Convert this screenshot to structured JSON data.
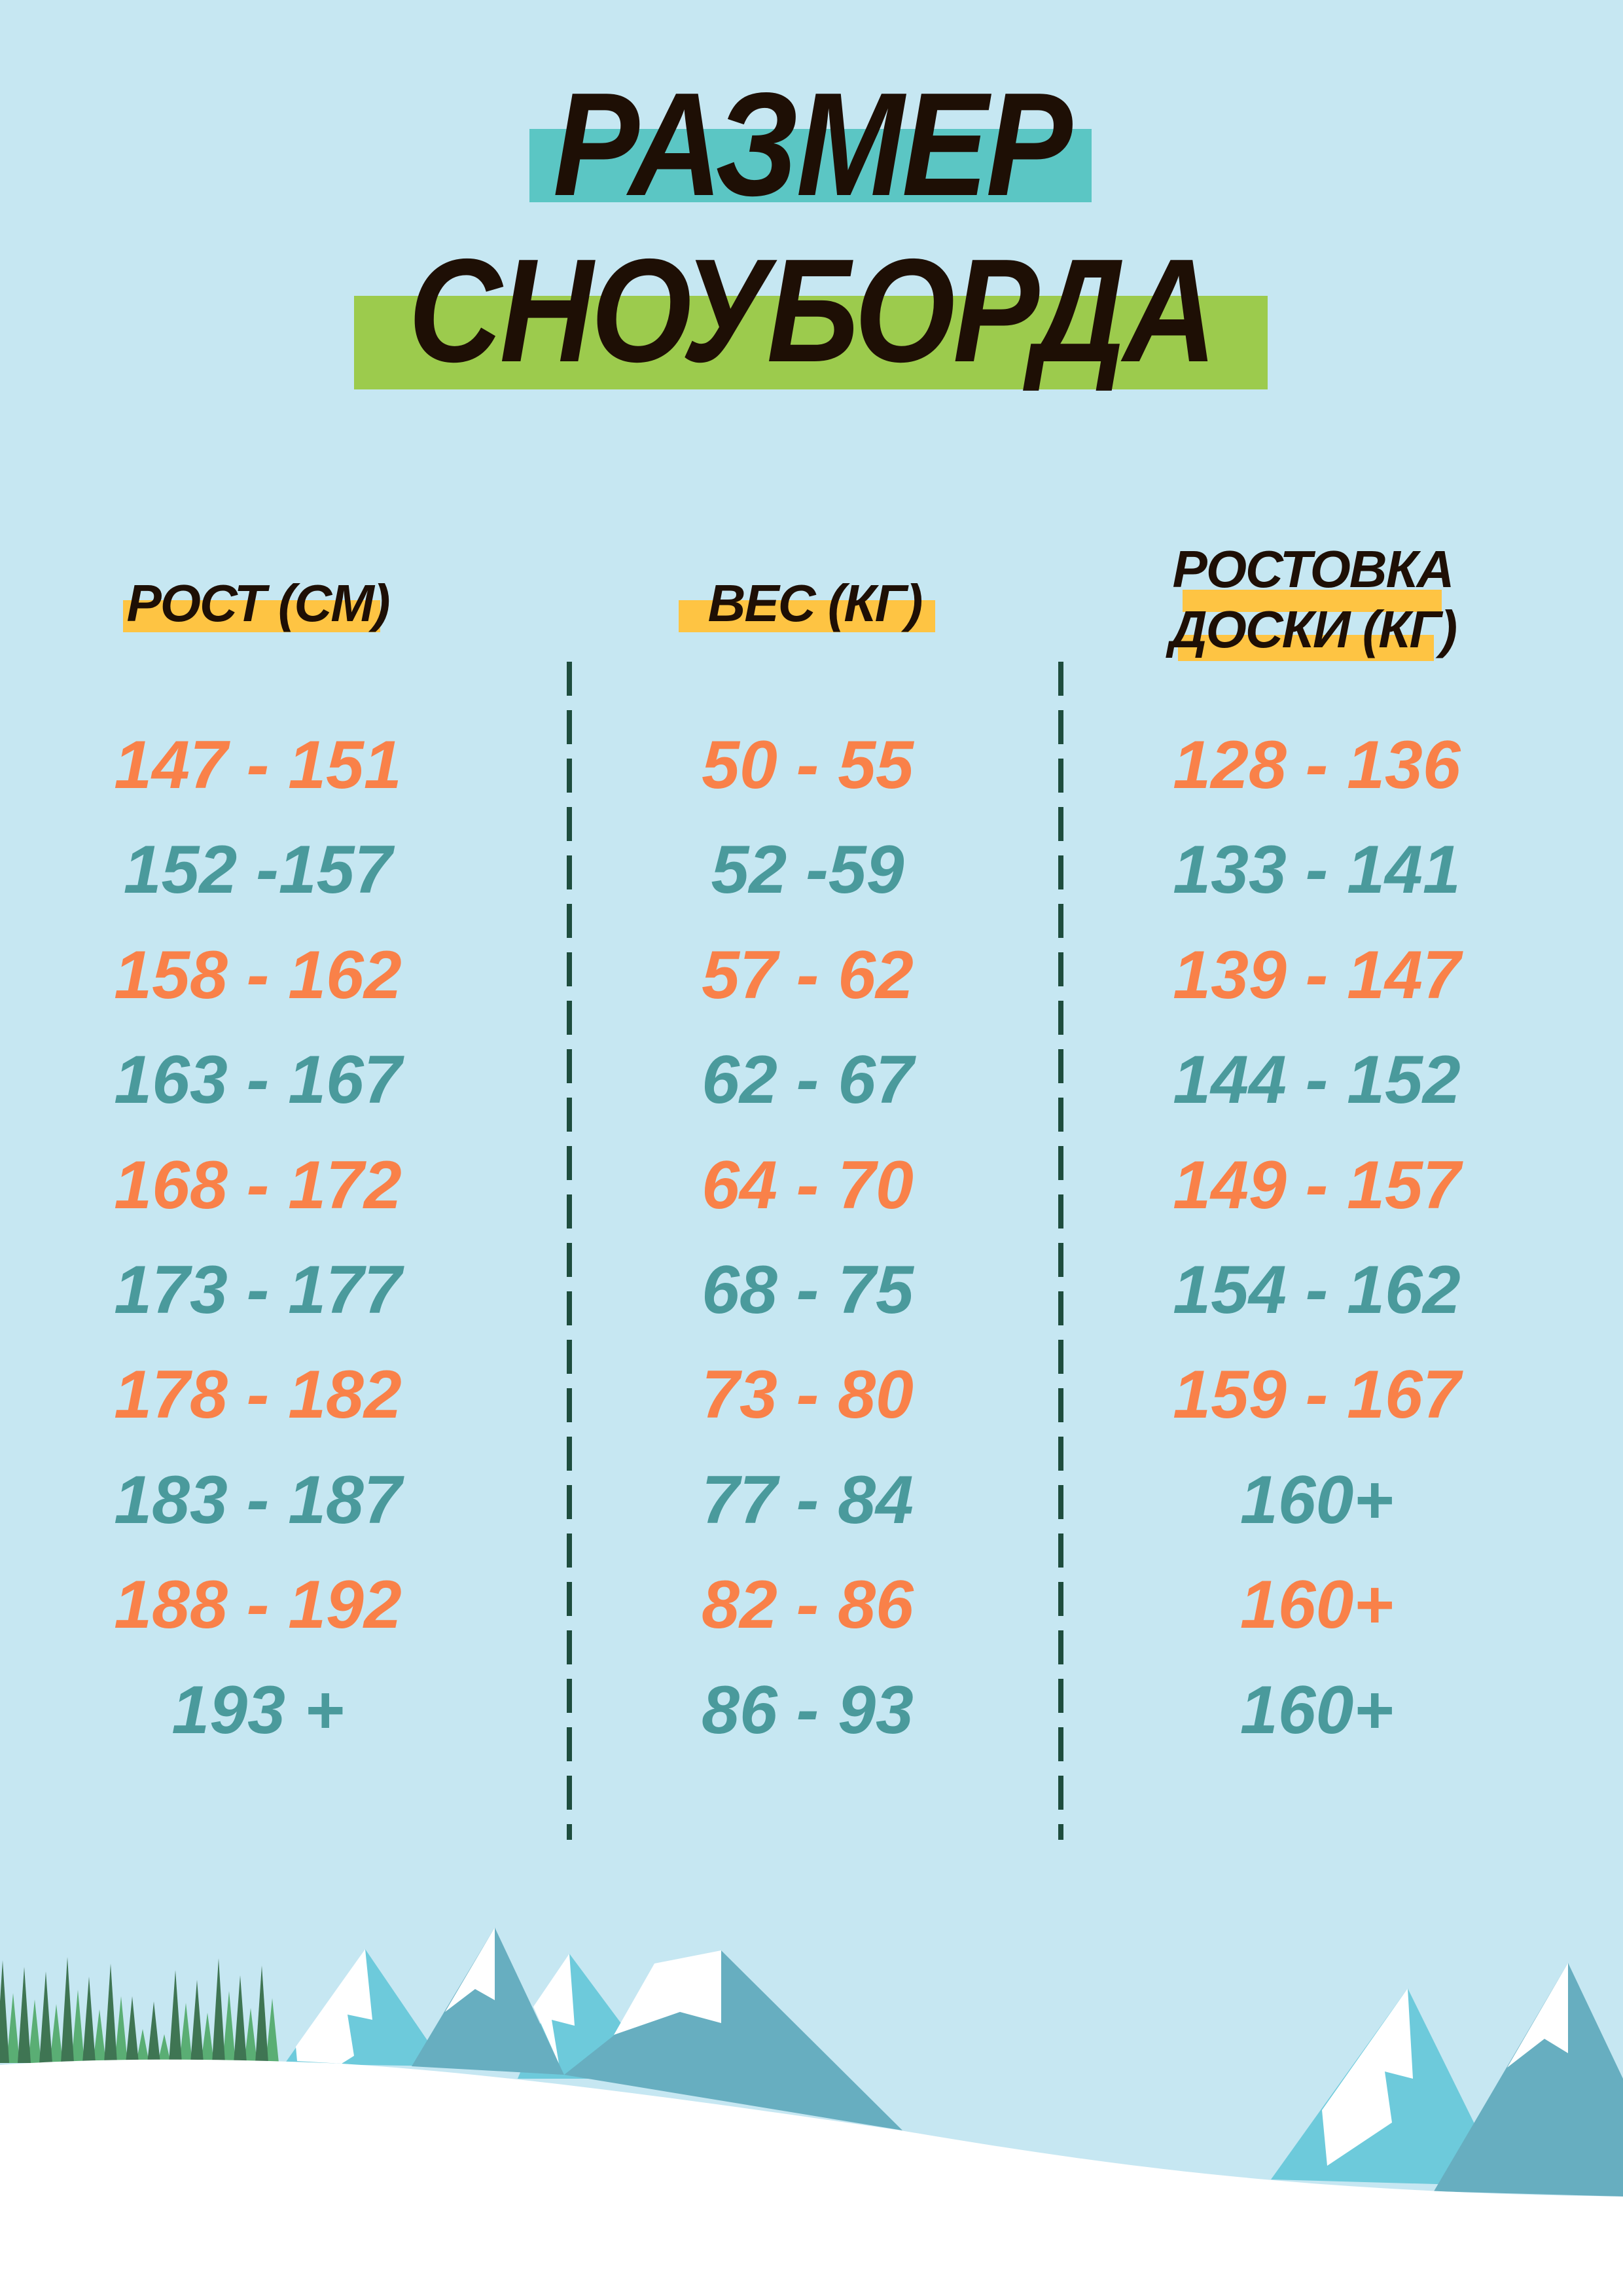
{
  "title": {
    "line1": "РАЗМЕР",
    "line2": "СНОУБОРДА"
  },
  "colors": {
    "background": "#c6e7f2",
    "title_bar_1": "#5bc6c4",
    "title_bar_2": "#9ccb4d",
    "header_highlight": "#fec443",
    "odd_row": "#f98149",
    "even_row": "#4a9a9c",
    "divider": "#1e4d3e"
  },
  "columns": [
    {
      "header": [
        "РОСТ (СМ)"
      ],
      "values": [
        "147 - 151",
        "152 -157",
        "158 - 162",
        "163 - 167",
        "168 - 172",
        "173 - 177",
        "178 - 182",
        "183 - 187",
        "188 - 192",
        "193 +"
      ]
    },
    {
      "header": [
        "ВЕС (КГ)"
      ],
      "values": [
        "50 - 55",
        "52 -59",
        "57 - 62",
        "62 - 67",
        "64 - 70",
        "68 - 75",
        "73 - 80",
        "77 - 84",
        "82 - 86",
        "86 - 93"
      ]
    },
    {
      "header": [
        "РОСТОВКА",
        "ДОСКИ (КГ)"
      ],
      "values": [
        "128 - 136",
        "133 - 141",
        "139 - 147",
        "144 - 152",
        "149 - 157",
        "154 - 162",
        "159 - 167",
        "160+",
        "160+",
        "160+"
      ]
    }
  ]
}
